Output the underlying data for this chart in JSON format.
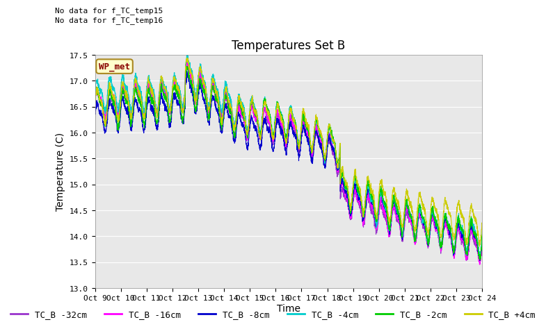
{
  "title": "Temperatures Set B",
  "ylabel": "Temperature (C)",
  "xlabel": "Time",
  "ylim": [
    13.0,
    17.5
  ],
  "yticks": [
    13.0,
    13.5,
    14.0,
    14.5,
    15.0,
    15.5,
    16.0,
    16.5,
    17.0,
    17.5
  ],
  "xtick_labels": [
    "Oct 9",
    "Oct 10",
    "Oct 11",
    "Oct 12",
    "Oct 13",
    "Oct 14",
    "Oct 15",
    "Oct 16",
    "Oct 17",
    "Oct 18",
    "Oct 19",
    "Oct 20",
    "Oct 21",
    "Oct 22",
    "Oct 23",
    "Oct 24"
  ],
  "series_names": [
    "TC_B -32cm",
    "TC_B -16cm",
    "TC_B -8cm",
    "TC_B -4cm",
    "TC_B -2cm",
    "TC_B +4cm"
  ],
  "series_colors": [
    "#9933cc",
    "#ff00ff",
    "#0000cc",
    "#00cccc",
    "#00cc00",
    "#cccc00"
  ],
  "no_data_texts": [
    "No data for f_TC_temp15",
    "No data for f_TC_temp16"
  ],
  "wp_met_label": "WP_met",
  "plot_bg_color": "#e8e8e8",
  "fig_bg_color": "#ffffff",
  "grid_color": "#ffffff",
  "title_fontsize": 12,
  "axis_fontsize": 10,
  "tick_fontsize": 8,
  "legend_fontsize": 9,
  "annotation_fontsize": 8
}
